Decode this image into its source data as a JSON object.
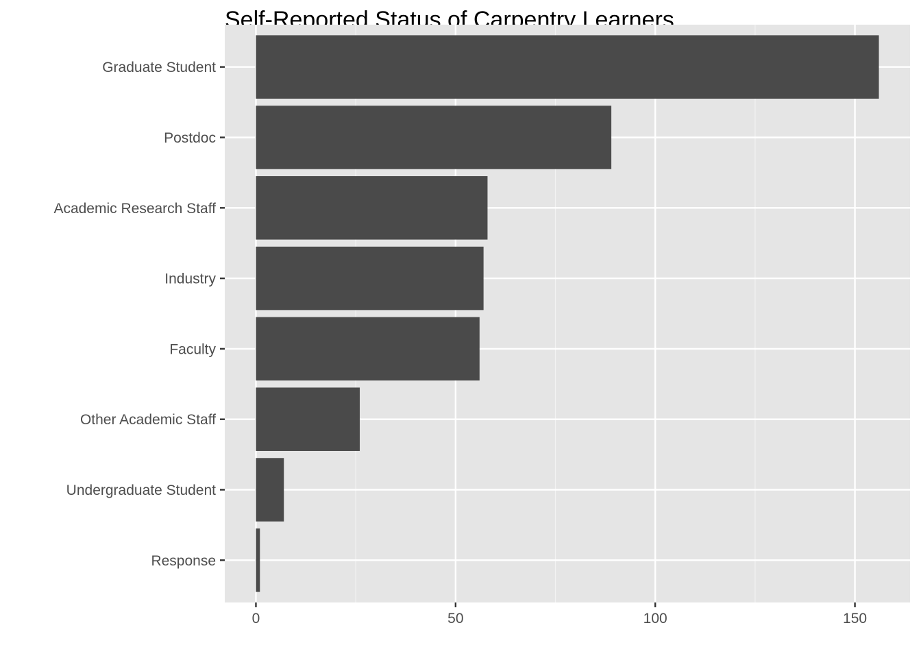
{
  "chart_data": {
    "type": "bar",
    "orientation": "horizontal",
    "title": "Self-Reported Status of Carpentry Learners",
    "xlabel": "",
    "ylabel": "",
    "categories": [
      "Graduate Student",
      "Postdoc",
      "Academic Research Staff",
      "Industry",
      "Faculty",
      "Other Academic Staff",
      "Undergraduate Student",
      "Response"
    ],
    "values": [
      156,
      89,
      58,
      57,
      56,
      26,
      7,
      1
    ],
    "xlim": [
      -7.8,
      163.8
    ],
    "x_ticks": [
      0,
      50,
      100,
      150
    ],
    "x_tick_labels": [
      "0",
      "50",
      "100",
      "150"
    ],
    "grid": true,
    "legend": "none",
    "colors": {
      "bar": "#4a4a4a",
      "panel_background": "#e5e5e5",
      "grid_major": "#ffffff",
      "grid_minor": "#f2f2f2",
      "tick_label": "#4d4d4d",
      "tick_mark": "#333333",
      "title": "#000000"
    }
  }
}
